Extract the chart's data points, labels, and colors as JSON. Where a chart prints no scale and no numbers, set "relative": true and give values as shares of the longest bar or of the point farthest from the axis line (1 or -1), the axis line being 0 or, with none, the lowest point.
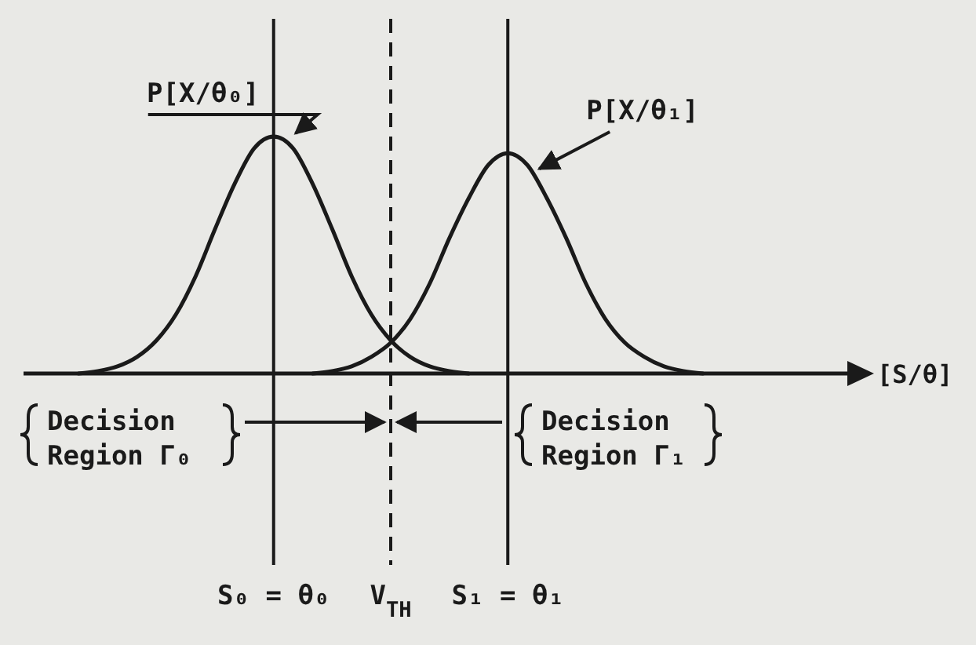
{
  "chart_data": {
    "type": "line",
    "relative": true,
    "categories": [
      null,
      null,
      null,
      null,
      null,
      null,
      null,
      null,
      null,
      null,
      "S₀ = θ₀",
      null,
      null,
      null,
      null,
      null,
      "V$_{TH}$",
      null,
      null,
      null,
      null,
      null,
      "S₁ = θ₁",
      null,
      null,
      null,
      null,
      null,
      null,
      null,
      null,
      null,
      null
    ],
    "series": [
      {
        "name": "P[X/θ₀]",
        "color": "#1a1a1a",
        "values": [
          0,
          0.01,
          0.03,
          0.07,
          0.14,
          0.25,
          0.41,
          0.61,
          0.8,
          0.95,
          1,
          0.95,
          0.8,
          0.61,
          0.41,
          0.25,
          0.14,
          0.07,
          0.03,
          0.01,
          0,
          null,
          null,
          null,
          null,
          null,
          null,
          null,
          null,
          null,
          null,
          null,
          null
        ]
      },
      {
        "name": "P[X/θ₁]",
        "color": "#1a1a1a",
        "values": [
          null,
          null,
          null,
          null,
          null,
          null,
          null,
          null,
          null,
          null,
          null,
          null,
          0,
          0.01,
          0.03,
          0.07,
          0.13,
          0.23,
          0.38,
          0.57,
          0.74,
          0.88,
          0.93,
          0.88,
          0.74,
          0.57,
          0.38,
          0.23,
          0.13,
          0.07,
          0.03,
          0.01,
          0
        ]
      }
    ],
    "ref_lines": [
      {
        "axis": "x",
        "value": "S₀ = θ₀",
        "line_style": "solid",
        "color": "#1a1a1a"
      },
      {
        "axis": "x",
        "value": "V$_{TH}$",
        "line_style": "dashed",
        "color": "#1a1a1a"
      },
      {
        "axis": "x",
        "value": "S₁ = θ₁",
        "line_style": "solid",
        "color": "#1a1a1a"
      }
    ],
    "annotations": [
      "Decision Region Γ₀",
      "Decision Region Γ₁",
      "[S/θ]"
    ]
  }
}
